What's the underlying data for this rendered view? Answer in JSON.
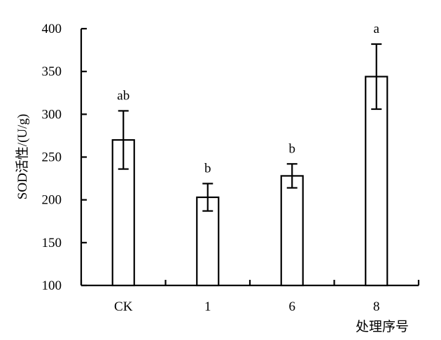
{
  "chart_data": {
    "type": "bar",
    "title": "",
    "xlabel": "处理序号",
    "ylabel": "SOD活性/(U/g)",
    "ylim": [
      100,
      400
    ],
    "yticks": [
      100,
      150,
      200,
      250,
      300,
      350,
      400
    ],
    "categories": [
      "CK",
      "1",
      "6",
      "8"
    ],
    "series": [
      {
        "values": [
          270,
          203,
          228,
          344
        ],
        "errors": [
          34,
          16,
          14,
          38
        ],
        "labels": [
          "ab",
          "b",
          "b",
          "a"
        ]
      }
    ],
    "grid": false,
    "legend": "none"
  }
}
